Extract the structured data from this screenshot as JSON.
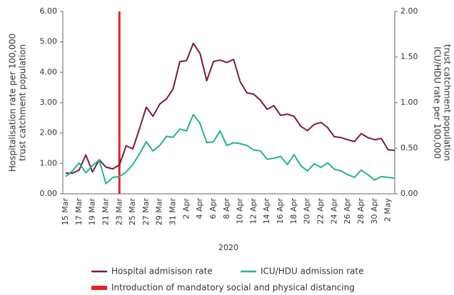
{
  "chart_data": {
    "type": "line",
    "ylabel": [
      "Hospitalisation rate per 100,000",
      "trust catchment population"
    ],
    "y2label": [
      "ICU/HDU rate per 100,000",
      "trust catchment population"
    ],
    "xlabel": "2020",
    "categories": [
      "15 Mar",
      null,
      "17 Mar",
      null,
      "19 Mar",
      null,
      "21 Mar",
      null,
      "23 Mar",
      null,
      "25 Mar",
      null,
      "27 Mar",
      null,
      "29 Mar",
      null,
      "31 Mar",
      null,
      "2 Apr",
      null,
      "4 Apr",
      null,
      "6 Apr",
      null,
      "8 Apr",
      null,
      "10 Apr",
      null,
      "12 Apr",
      null,
      "14 Apr",
      null,
      "16 Apr",
      null,
      "18 Apr",
      null,
      "20 Apr",
      null,
      "22 Apr",
      null,
      "24 Apr",
      null,
      "26 Apr",
      null,
      "28 Apr",
      null,
      "30 Apr",
      null,
      "2 May",
      null
    ],
    "series": [
      {
        "name": "Hospital admisison rate",
        "color": "#7b1c2e",
        "values": [
          0.68,
          0.68,
          0.78,
          1.28,
          0.72,
          1.12,
          0.88,
          0.82,
          0.95,
          1.58,
          1.48,
          2.15,
          2.85,
          2.55,
          2.95,
          3.12,
          3.45,
          4.35,
          4.38,
          4.95,
          4.62,
          3.72,
          4.35,
          4.4,
          4.32,
          4.42,
          3.68,
          3.32,
          3.28,
          3.08,
          2.78,
          2.9,
          2.58,
          2.62,
          2.55,
          2.22,
          2.08,
          2.28,
          2.35,
          2.18,
          1.88,
          1.85,
          1.78,
          1.72,
          1.98,
          1.85,
          1.78,
          1.82,
          1.45,
          1.43
        ]
      },
      {
        "name": "ICU/HDU admission rate",
        "color": "#1fb58f",
        "axis": "y2",
        "values": [
          0.19,
          0.25,
          0.34,
          0.23,
          0.31,
          0.37,
          0.11,
          0.18,
          0.19,
          0.24,
          0.32,
          0.44,
          0.57,
          0.47,
          0.53,
          0.63,
          0.62,
          0.71,
          0.69,
          0.87,
          0.77,
          0.56,
          0.57,
          0.69,
          0.53,
          0.56,
          0.55,
          0.53,
          0.48,
          0.47,
          0.38,
          0.39,
          0.41,
          0.32,
          0.43,
          0.31,
          0.25,
          0.33,
          0.29,
          0.34,
          0.27,
          0.25,
          0.21,
          0.18,
          0.26,
          0.21,
          0.15,
          0.19,
          0.18,
          0.17
        ]
      }
    ],
    "vline": {
      "category": "23 Mar",
      "label": "Introduction of mandatory social and physical distancing",
      "color": "#e3202a"
    },
    "ylim": [
      0,
      6
    ],
    "yticks": [
      {
        "value": 0,
        "label": "0.00"
      },
      {
        "value": 1,
        "label": "1.00"
      },
      {
        "value": 2,
        "label": "2.00"
      },
      {
        "value": 3,
        "label": "3.00"
      },
      {
        "value": 4,
        "label": "4.00"
      },
      {
        "value": 5,
        "label": "5.00"
      },
      {
        "value": 6,
        "label": "6.00"
      }
    ],
    "y2lim": [
      0,
      2
    ],
    "y2ticks": [
      {
        "value": 0,
        "label": "0.00"
      },
      {
        "value": 0.5,
        "label": "0.50"
      },
      {
        "value": 1,
        "label": "1.00"
      },
      {
        "value": 1.5,
        "label": "1.50"
      },
      {
        "value": 2,
        "label": "2.00"
      }
    ]
  }
}
